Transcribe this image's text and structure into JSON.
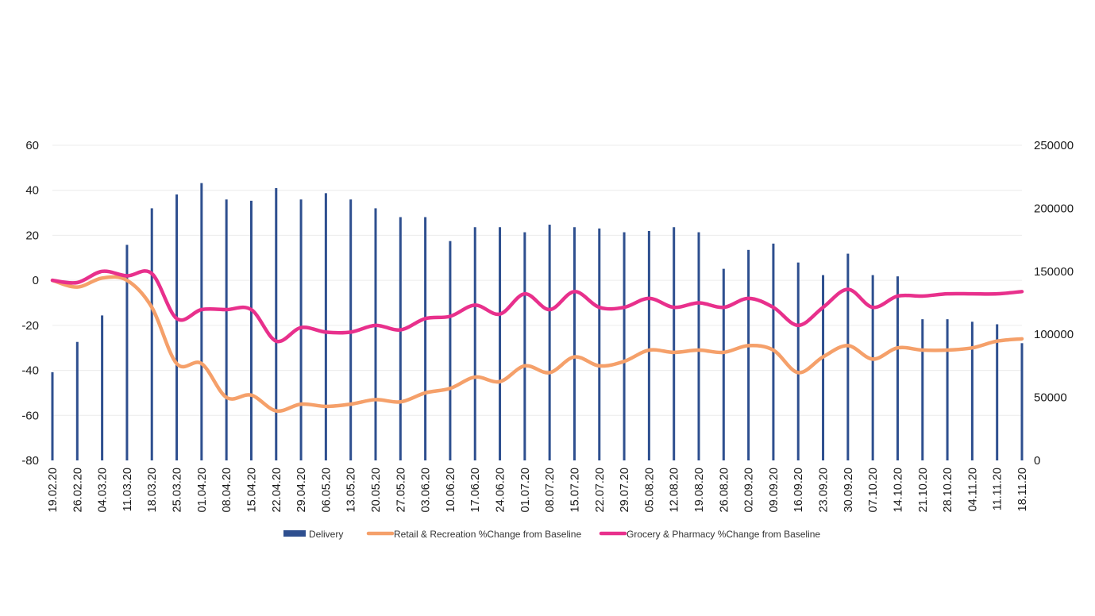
{
  "chart_data": {
    "type": "bar",
    "title": "",
    "categories": [
      "19.02.20",
      "26.02.20",
      "04.03.20",
      "11.03.20",
      "18.03.20",
      "25.03.20",
      "01.04.20",
      "08.04.20",
      "15.04.20",
      "22.04.20",
      "29.04.20",
      "06.05.20",
      "13.05.20",
      "20.05.20",
      "27.05.20",
      "03.06.20",
      "10.06.20",
      "17.06.20",
      "24.06.20",
      "01.07.20",
      "08.07.20",
      "15.07.20",
      "22.07.20",
      "29.07.20",
      "05.08.20",
      "12.08.20",
      "19.08.20",
      "26.08.20",
      "02.09.20",
      "09.09.20",
      "16.09.20",
      "23.09.20",
      "30.09.20",
      "07.10.20",
      "14.10.20",
      "21.10.20",
      "28.10.20",
      "04.11.20",
      "11.11.20",
      "18.11.20"
    ],
    "y_left": {
      "min": -80,
      "max": 60,
      "step": 20,
      "ticks": [
        "60",
        "40",
        "20",
        "0",
        "-20",
        "-40",
        "-60",
        "-80"
      ]
    },
    "y_right": {
      "min": 0,
      "max": 250000,
      "step": 50000,
      "ticks": [
        "250000",
        "200000",
        "150000",
        "100000",
        "50000",
        "0"
      ]
    },
    "series": [
      {
        "name": "Delivery",
        "type": "bar",
        "axis": "right",
        "color": "#2e4f8f",
        "values": [
          70000,
          94000,
          115000,
          171000,
          200000,
          211000,
          220000,
          207000,
          206000,
          216000,
          207000,
          212000,
          207000,
          200000,
          193000,
          193000,
          174000,
          185000,
          185000,
          181000,
          187000,
          185000,
          184000,
          181000,
          182000,
          185000,
          181000,
          152000,
          167000,
          172000,
          157000,
          147000,
          164000,
          147000,
          146000,
          112000,
          112000,
          110000,
          108000,
          93000
        ]
      },
      {
        "name": "Retail & Recreation %Change from Baseline",
        "type": "line",
        "axis": "left",
        "color": "#f5a06a",
        "values": [
          0,
          -3,
          1,
          0,
          -12,
          -37,
          -37,
          -52,
          -51,
          -58,
          -55,
          -56,
          -55,
          -53,
          -54,
          -50,
          -48,
          -43,
          -45,
          -38,
          -41,
          -34,
          -38,
          -36,
          -31,
          -32,
          -31,
          -32,
          -29,
          -31,
          -41,
          -34,
          -29,
          -35,
          -30,
          -31,
          -31,
          -30,
          -27,
          -26
        ]
      },
      {
        "name": "Grocery & Pharmacy %Change from Baseline",
        "type": "line",
        "axis": "left",
        "color": "#e8308c",
        "values": [
          0,
          -1,
          4,
          2,
          3,
          -17,
          -13,
          -13,
          -13,
          -27,
          -21,
          -23,
          -23,
          -20,
          -22,
          -17,
          -16,
          -11,
          -15,
          -6,
          -13,
          -5,
          -12,
          -12,
          -8,
          -12,
          -10,
          -12,
          -8,
          -12,
          -20,
          -12,
          -4,
          -12,
          -7,
          -7,
          -6,
          -6,
          -6,
          -5
        ]
      }
    ],
    "legend_position": "bottom",
    "grid": true
  }
}
